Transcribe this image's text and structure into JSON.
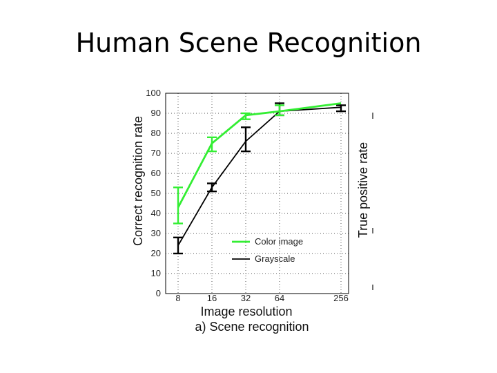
{
  "slide": {
    "title": "Human Scene Recognition"
  },
  "chart_data": {
    "type": "line",
    "xlabel": "Image resolution",
    "ylabel": "Correct recognition rate",
    "right_ylabel": "True positive rate",
    "caption": "a) Scene recognition",
    "x": [
      8,
      16,
      32,
      64,
      256
    ],
    "x_tick_labels": [
      "8",
      "16",
      "32",
      "64",
      "256"
    ],
    "x_scale": "log2",
    "ylim": [
      0,
      100
    ],
    "y_ticks": [
      0,
      10,
      20,
      30,
      40,
      50,
      60,
      70,
      80,
      90,
      100
    ],
    "grid": true,
    "legend_position": "lower-right",
    "series": [
      {
        "name": "Color image",
        "color": "#33ee33",
        "values": [
          43,
          75,
          89,
          91,
          95
        ],
        "error_low": [
          35,
          71,
          87,
          89,
          95
        ],
        "error_high": [
          53,
          78,
          90,
          94,
          95
        ]
      },
      {
        "name": "Grayscale",
        "color": "#000000",
        "values": [
          24,
          53,
          76,
          91,
          93
        ],
        "error_low": [
          20,
          51,
          71,
          89,
          91
        ],
        "error_high": [
          28,
          55,
          83,
          95,
          94
        ]
      }
    ]
  }
}
